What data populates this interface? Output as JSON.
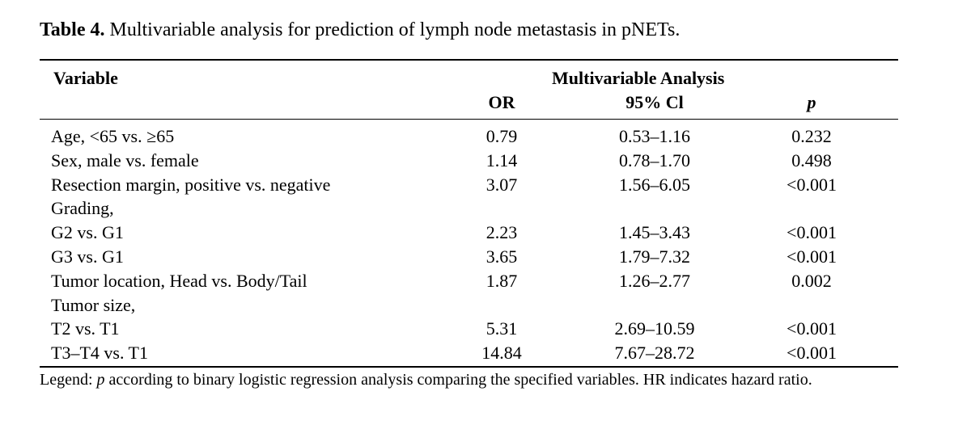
{
  "caption": {
    "label": "Table 4.",
    "text": "Multivariable analysis for prediction of lymph node metastasis in pNETs."
  },
  "header": {
    "variable": "Variable",
    "group": "Multivariable Analysis",
    "or": "OR",
    "ci": "95% Cl",
    "p": "p"
  },
  "rows": [
    {
      "variable": "Age, <65 vs. ≥65",
      "or": "0.79",
      "ci": "0.53–1.16",
      "p": "0.232"
    },
    {
      "variable": "Sex, male vs. female",
      "or": "1.14",
      "ci": "0.78–1.70",
      "p": "0.498"
    },
    {
      "variable": "Resection margin, positive vs. negative",
      "or": "3.07",
      "ci": "1.56–6.05",
      "p": "<0.001"
    },
    {
      "variable": "Grading,",
      "or": "",
      "ci": "",
      "p": ""
    },
    {
      "variable": "G2 vs. G1",
      "or": "2.23",
      "ci": "1.45–3.43",
      "p": "<0.001"
    },
    {
      "variable": "G3 vs. G1",
      "or": "3.65",
      "ci": "1.79–7.32",
      "p": "<0.001"
    },
    {
      "variable": "Tumor location, Head vs. Body/Tail",
      "or": "1.87",
      "ci": "1.26–2.77",
      "p": "0.002"
    },
    {
      "variable": "Tumor size,",
      "or": "",
      "ci": "",
      "p": ""
    },
    {
      "variable": "T2 vs. T1",
      "or": "5.31",
      "ci": "2.69–10.59",
      "p": "<0.001"
    },
    {
      "variable": "T3–T4 vs. T1",
      "or": "14.84",
      "ci": "7.67–28.72",
      "p": "<0.001"
    }
  ],
  "legend": {
    "prefix": "Legend: ",
    "p": "p",
    "text": " according to binary logistic regression analysis comparing the specified variables.  HR indicates hazard ratio."
  }
}
